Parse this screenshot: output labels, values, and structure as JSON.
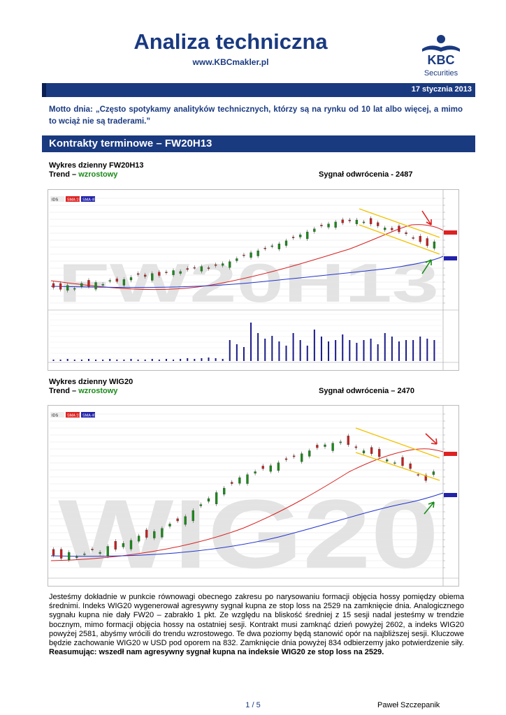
{
  "header": {
    "title": "Analiza techniczna",
    "url": "www.KBCmakler.pl",
    "logo_text": "KBC",
    "logo_sub": "Securities",
    "date": "17 stycznia 2013",
    "brand_color": "#1a3a80"
  },
  "motto": "Motto dnia: „Często spotykamy analityków technicznych, którzy są na rynku od 10 lat albo więcej, a mimo to wciąż nie są traderami.”",
  "section": {
    "title": "Kontrakty terminowe – FW20H13"
  },
  "chart1": {
    "caption": "Wykres dzienny FW20H13",
    "trend_label": "Trend –",
    "trend_value": "wzrostowy",
    "signal": "Sygnał odwrócenia - 2487",
    "watermark": "FW20H13",
    "legend": [
      "IDS",
      "SMA 15",
      "SMA 45"
    ]
  },
  "chart2": {
    "caption": "Wykres dzienny WIG20",
    "trend_label": "Trend –",
    "trend_value": "wzrostowy",
    "signal": "Sygnał odwrócenia – 2470",
    "watermark": "WIG20",
    "legend": [
      "IDS",
      "SMA 15",
      "SMA 45"
    ]
  },
  "body": {
    "paragraph": "Jesteśmy dokładnie w punkcie równowagi obecnego zakresu po narysowaniu formacji objęcia hossy pomiędzy obiema średnimi. Indeks WIG20 wygenerował agresywny sygnał kupna ze stop loss na 2529 na zamknięcie dnia. Analogicznego sygnału kupna nie dały FW20 – zabrakło 1 pkt. Ze względu na bliskość średniej z 15 sesji nadal jesteśmy w trendzie bocznym, mimo formacji objęcia hossy na ostatniej sesji. Kontrakt musi zamknąć dzień powyżej 2602, a indeks WIG20 powyżej 2581, abyśmy wrócili do trendu wzrostowego. Te dwa poziomy będą stanowić opór na najbliższej sesji. Kluczowe będzie zachowanie WIG20 w USD pod oporem na 832. Zamknięcie dnia powyżej 834 odbierzemy jako potwierdzenie siły.",
    "summary": "Reasumując: wszedł nam agresywny sygnał kupna na indeksie WIG20 ze stop loss na 2529."
  },
  "footer": {
    "page": "1 / 5",
    "author": "Paweł Szczepanik"
  }
}
